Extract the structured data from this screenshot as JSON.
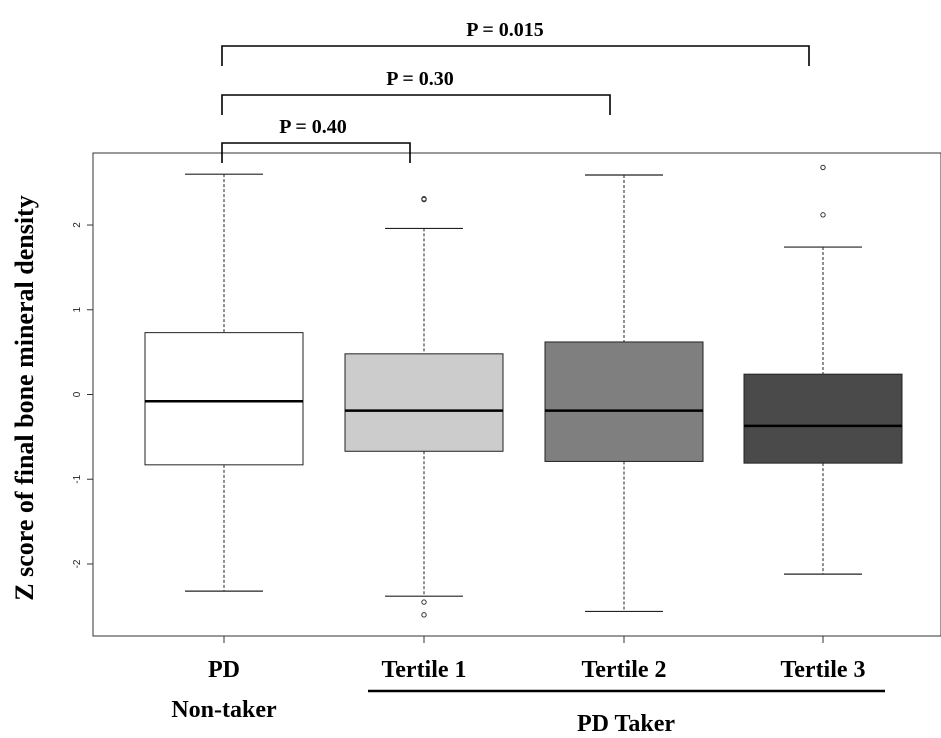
{
  "chart_data": {
    "type": "box",
    "ylabel": "Z score of final bone mineral density",
    "ylim": [
      -2.85,
      2.85
    ],
    "yticks": [
      -2,
      -1,
      0,
      1,
      2
    ],
    "grid": false,
    "groups": [
      {
        "label_lines": [
          "PD",
          "Non-taker"
        ],
        "fill": "#ffffff",
        "whisker_low": -2.32,
        "q1": -0.83,
        "median": -0.08,
        "q3": 0.73,
        "whisker_high": 2.6,
        "outliers": []
      },
      {
        "label_lines": [
          "Tertile 1"
        ],
        "fill": "#cccccc",
        "whisker_low": -2.38,
        "q1": -0.67,
        "median": -0.19,
        "q3": 0.48,
        "whisker_high": 1.96,
        "outliers": [
          2.31,
          2.3,
          -2.45,
          -2.6
        ]
      },
      {
        "label_lines": [
          "Tertile 2"
        ],
        "fill": "#7f7f7f",
        "whisker_low": -2.56,
        "q1": -0.79,
        "median": -0.19,
        "q3": 0.62,
        "whisker_high": 2.59,
        "outliers": []
      },
      {
        "label_lines": [
          "Tertile 3"
        ],
        "fill": "#4a4a4a",
        "whisker_low": -2.12,
        "q1": -0.81,
        "median": -0.37,
        "q3": 0.24,
        "whisker_high": 1.74,
        "outliers": [
          2.68,
          2.12
        ]
      }
    ],
    "group_bracket": {
      "label": "PD Taker",
      "from_group": 1,
      "to_group": 3
    },
    "comparisons": [
      {
        "label": "P = 0.40",
        "from_group": 0,
        "to_group": 1,
        "level": 0
      },
      {
        "label": "P = 0.30",
        "from_group": 0,
        "to_group": 2,
        "level": 1
      },
      {
        "label": "P = 0.015",
        "from_group": 0,
        "to_group": 3,
        "level": 2
      }
    ]
  }
}
